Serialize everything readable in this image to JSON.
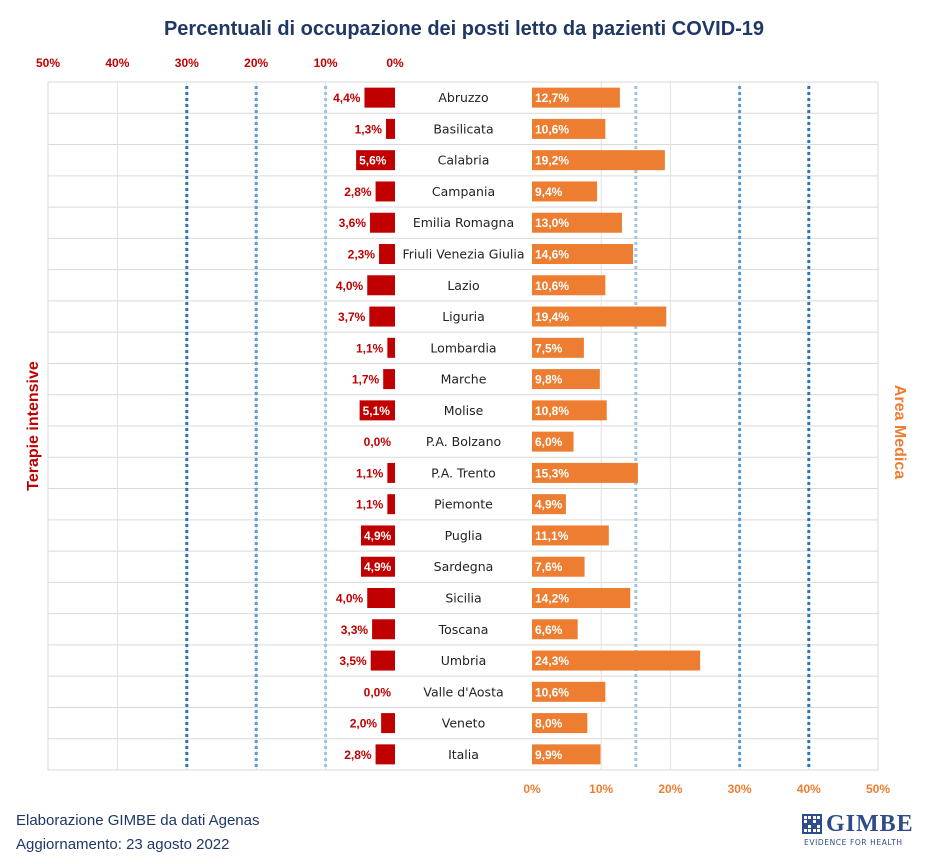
{
  "chart_data": {
    "type": "bar",
    "title": "Percentuali di occupazione  dei posti letto da pazienti COVID-19",
    "left_label": "Terapie intensive",
    "right_label": "Area Medica",
    "left_ticks": [
      "50%",
      "40%",
      "30%",
      "20%",
      "10%",
      "0%"
    ],
    "right_ticks": [
      "0%",
      "10%",
      "20%",
      "30%",
      "40%",
      "50%"
    ],
    "xlim": [
      0,
      50
    ],
    "thresholds": {
      "terapie_intensive": [
        10,
        20,
        30
      ],
      "area_medica": [
        15,
        30,
        40
      ]
    },
    "colors": {
      "terapie_intensive": "#c00000",
      "area_medica": "#ed7d31",
      "threshold_light": "#9dc3e6",
      "threshold_mid": "#5b9bd5",
      "threshold_dark": "#2e75b6"
    },
    "categories": [
      "Abruzzo",
      "Basilicata",
      "Calabria",
      "Campania",
      "Emilia Romagna",
      "Friuli Venezia Giulia",
      "Lazio",
      "Liguria",
      "Lombardia",
      "Marche",
      "Molise",
      "P.A. Bolzano",
      "P.A. Trento",
      "Piemonte",
      "Puglia",
      "Sardegna",
      "Sicilia",
      "Toscana",
      "Umbria",
      "Valle d'Aosta",
      "Veneto",
      "Italia"
    ],
    "series": [
      {
        "name": "Terapie intensive",
        "values": [
          4.4,
          1.3,
          5.6,
          2.8,
          3.6,
          2.3,
          4.0,
          3.7,
          1.1,
          1.7,
          5.1,
          0.0,
          1.1,
          1.1,
          4.9,
          4.9,
          4.0,
          3.3,
          3.5,
          0.0,
          2.0,
          2.8
        ],
        "labels": [
          "4,4%",
          "1,3%",
          "5,6%",
          "2,8%",
          "3,6%",
          "2,3%",
          "4,0%",
          "3,7%",
          "1,1%",
          "1,7%",
          "5,1%",
          "0,0%",
          "1,1%",
          "1,1%",
          "4,9%",
          "4,9%",
          "4,0%",
          "3,3%",
          "3,5%",
          "0,0%",
          "2,0%",
          "2,8%"
        ]
      },
      {
        "name": "Area Medica",
        "values": [
          12.7,
          10.6,
          19.2,
          9.4,
          13.0,
          14.6,
          10.6,
          19.4,
          7.5,
          9.8,
          10.8,
          6.0,
          15.3,
          4.9,
          11.1,
          7.6,
          14.2,
          6.6,
          24.3,
          10.6,
          8.0,
          9.9
        ],
        "labels": [
          "12,7%",
          "10,6%",
          "19,2%",
          "9,4%",
          "13,0%",
          "14,6%",
          "10,6%",
          "19,4%",
          "7,5%",
          "9,8%",
          "10,8%",
          "6,0%",
          "15,3%",
          "4,9%",
          "11,1%",
          "7,6%",
          "14,2%",
          "6,6%",
          "24,3%",
          "10,6%",
          "8,0%",
          "9,9%"
        ]
      }
    ]
  },
  "footer": {
    "source": "Elaborazione GIMBE da dati Agenas",
    "update": "Aggiornamento:  23 agosto 2022"
  },
  "logo": {
    "name": "GIMBE",
    "tagline": "EVIDENCE FOR HEALTH"
  }
}
